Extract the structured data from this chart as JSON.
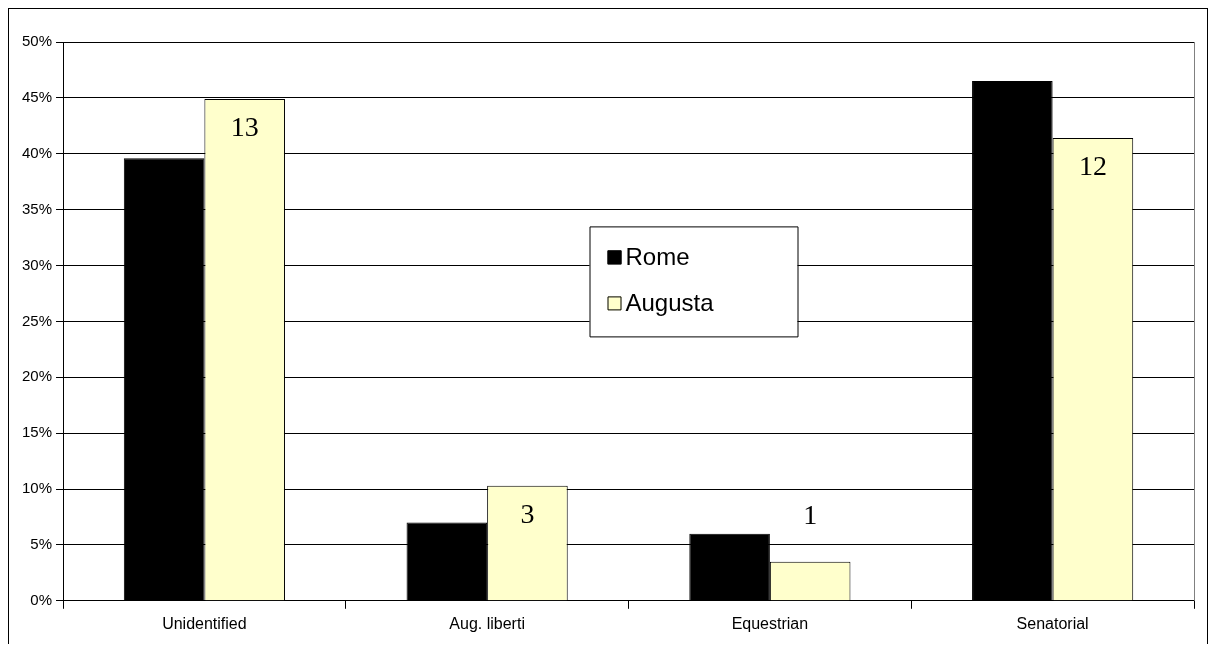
{
  "chart_data": {
    "type": "bar",
    "categories": [
      "Unidentified",
      "Aug. liberti",
      "Equestrian",
      "Senatorial"
    ],
    "series": [
      {
        "name": "Rome",
        "color": "#000000",
        "values": [
          39.6,
          7.0,
          6.0,
          46.5
        ]
      },
      {
        "name": "Augusta",
        "color": "#ffffcc",
        "values": [
          44.9,
          10.3,
          3.5,
          41.4
        ]
      }
    ],
    "annotations": [
      {
        "text": "13",
        "x": "Unidentified",
        "y": 44.9
      },
      {
        "text": "3",
        "x": "Aug. liberti",
        "y": 10.3
      },
      {
        "text": "1",
        "x": "Equestrian",
        "y": 3.5
      },
      {
        "text": "12",
        "x": "Senatorial",
        "y": 41.4
      }
    ],
    "ylim": [
      0,
      50
    ],
    "yticks": [
      {
        "value": 0,
        "label": "0%"
      },
      {
        "value": 5,
        "label": "5%"
      },
      {
        "value": 10,
        "label": "10%"
      },
      {
        "value": 15,
        "label": "15%"
      },
      {
        "value": 20,
        "label": "20%"
      },
      {
        "value": 25,
        "label": "25%"
      },
      {
        "value": 30,
        "label": "30%"
      },
      {
        "value": 35,
        "label": "35%"
      },
      {
        "value": 40,
        "label": "40%"
      },
      {
        "value": 45,
        "label": "45%"
      },
      {
        "value": 50,
        "label": "50%"
      }
    ],
    "grid": "y",
    "legend": "center"
  }
}
